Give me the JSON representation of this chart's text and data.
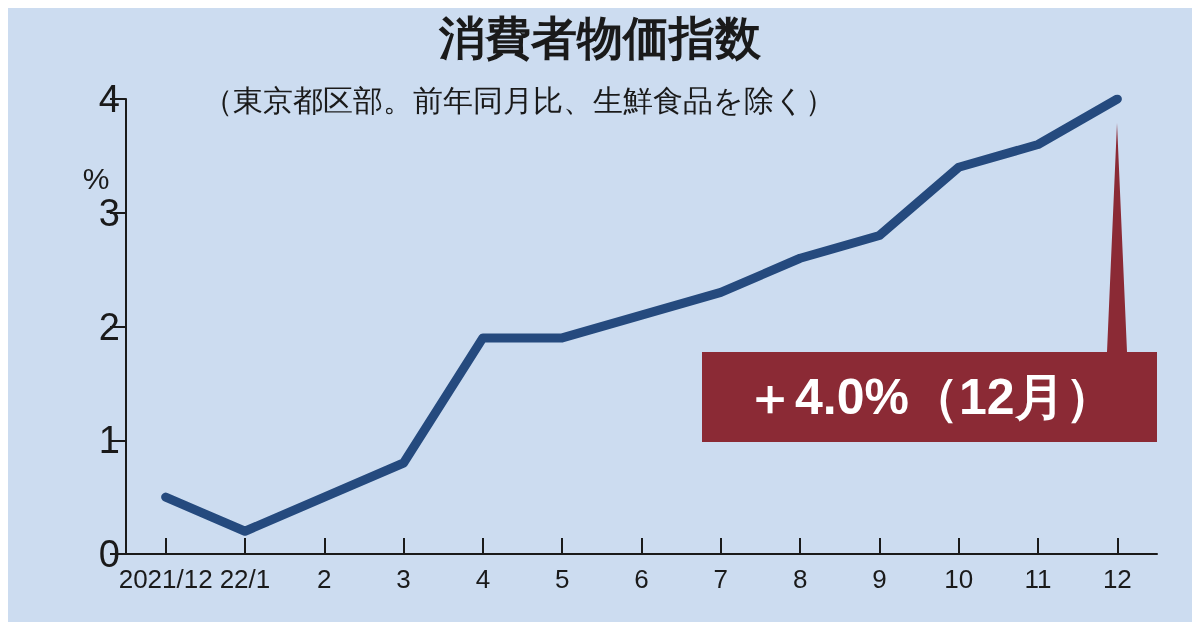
{
  "chart_data": {
    "type": "line",
    "title": "消費者物価指数",
    "subtitle": "（東京都区部。前年同月比、生鮮食品を除く）",
    "ylabel": "%",
    "categories": [
      "2021/12",
      "22/1",
      "2",
      "3",
      "4",
      "5",
      "6",
      "7",
      "8",
      "9",
      "10",
      "11",
      "12"
    ],
    "series": [
      {
        "color": "#254a7e",
        "values": [
          0.5,
          0.2,
          0.5,
          0.8,
          1.9,
          1.9,
          2.1,
          2.3,
          2.6,
          2.8,
          3.4,
          3.6,
          4.0
        ]
      }
    ],
    "ylim": [
      0,
      4
    ],
    "yticks": [
      0,
      1,
      2,
      3,
      4
    ],
    "grid": false,
    "line_style": "solid",
    "annotations": [
      "＋4.0%（12月）"
    ]
  }
}
